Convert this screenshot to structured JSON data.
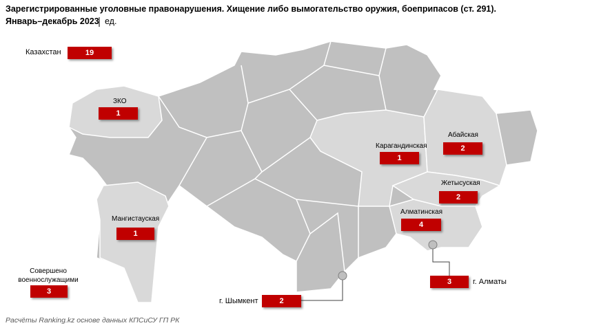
{
  "title": "Зарегистрированные уголовные правонарушения. Хищение либо вымогательство оружия, боеприпасов (ст. 291).",
  "period": "Январь–декабрь 2023",
  "unit": "ед.",
  "total": {
    "label": "Казахстан",
    "value": 19
  },
  "regions": [
    {
      "label": "ЗКО",
      "value": 1
    },
    {
      "label": "Карагандинская",
      "value": 1
    },
    {
      "label": "Абайская",
      "value": 2
    },
    {
      "label": "Жетысуская",
      "value": 2
    },
    {
      "label": "Алматинская",
      "value": 4
    },
    {
      "label": "Мангистауская",
      "value": 1
    }
  ],
  "cities": [
    {
      "label": "г. Шымкент",
      "value": 2
    },
    {
      "label": "г. Алматы",
      "value": 3
    }
  ],
  "military": {
    "label": "Совершено военнослужащими",
    "value": 3
  },
  "source": "Расчёты Ranking.kz основе данных КПСиСУ ГП РК"
}
